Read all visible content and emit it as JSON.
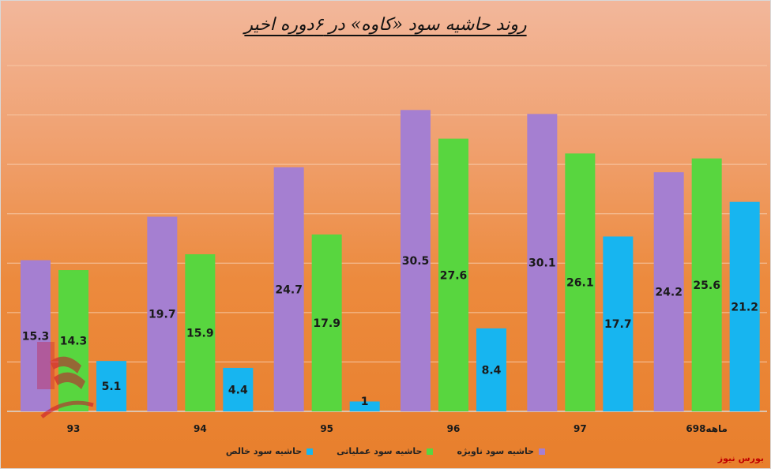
{
  "title": "روند حاشیه سود «کاوه» در ۶دوره اخیر",
  "watermark": "بورس نیوز",
  "colors": {
    "gross": "#a57fd1",
    "operating": "#58d63f",
    "net": "#17b5f0",
    "grid": "#f6c7a4",
    "label": "#1a1a1a"
  },
  "chart_data": {
    "type": "bar",
    "categories": [
      "93",
      "94",
      "95",
      "96",
      "97",
      "6ماهه98"
    ],
    "ylim": [
      0,
      35
    ],
    "series": [
      {
        "name": "حاشیه سود ناویژه",
        "color_key": "gross",
        "values": [
          15.3,
          19.7,
          24.7,
          30.5,
          30.1,
          24.2
        ]
      },
      {
        "name": "حاشیه سود عملیاتی",
        "color_key": "operating",
        "values": [
          14.3,
          15.9,
          17.9,
          27.6,
          26.1,
          25.6
        ]
      },
      {
        "name": "حاشیه سود خالص",
        "color_key": "net",
        "values": [
          5.1,
          4.4,
          1,
          8.4,
          17.7,
          21.2
        ]
      }
    ],
    "grid": true,
    "legend_position": "bottom",
    "legend_order": [
      "حاشیه سود ناویژه",
      "حاشیه سود عملیاتی",
      "حاشیه سود خالص"
    ]
  }
}
